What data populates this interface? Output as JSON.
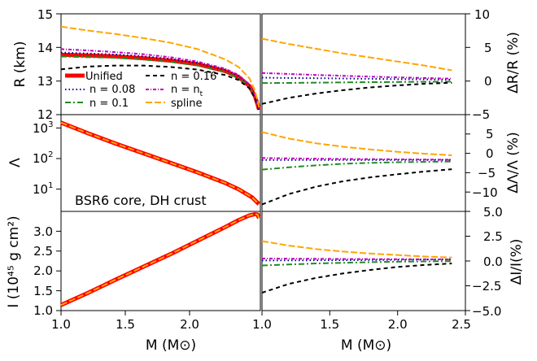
{
  "colors": {
    "unified": "#ff0000",
    "n008": "#00008b",
    "n01": "#228b22",
    "n016": "#000000",
    "nt": "#c000c0",
    "spline": "#ffa500"
  },
  "chart_data": [
    {
      "id": "radius",
      "type": "line",
      "ylabel": "R (km)",
      "ylim": [
        12,
        15
      ],
      "xlim": [
        1.0,
        2.5
      ],
      "yticks": [
        "12",
        "13",
        "14",
        "15"
      ],
      "legend": {
        "placement": "bottom-left",
        "entries": [
          "Unified",
          "n = 0.08",
          "n = 0.1",
          "n = 0.16",
          "n = n_t",
          "spline"
        ],
        "labels": {
          "unified": "Unified",
          "n008": "n = 0.08",
          "n01": "n = 0.1",
          "n016": "n = 0.16",
          "nt": "n = n",
          "nt_sub": "t",
          "spline": "spline"
        }
      },
      "series": [
        {
          "name": "Unified",
          "style": "solid-thick",
          "x": [
            1.0,
            1.2,
            1.4,
            1.6,
            1.8,
            2.0,
            2.2,
            2.3,
            2.38,
            2.42,
            2.44,
            2.45
          ],
          "y": [
            13.78,
            13.76,
            13.73,
            13.68,
            13.61,
            13.5,
            13.3,
            13.12,
            12.85,
            12.55,
            12.3,
            12.15
          ]
        },
        {
          "name": "n = 0.08",
          "style": "dotted",
          "x": [
            1.0,
            1.2,
            1.4,
            1.6,
            1.8,
            2.0,
            2.2,
            2.3,
            2.38,
            2.42,
            2.44,
            2.45
          ],
          "y": [
            13.85,
            13.82,
            13.79,
            13.74,
            13.66,
            13.54,
            13.34,
            13.16,
            12.88,
            12.57,
            12.32,
            12.17
          ]
        },
        {
          "name": "n = 0.1",
          "style": "dash-dot",
          "x": [
            1.0,
            1.2,
            1.4,
            1.6,
            1.8,
            2.0,
            2.2,
            2.3,
            2.38,
            2.42,
            2.44,
            2.45
          ],
          "y": [
            13.73,
            13.71,
            13.69,
            13.64,
            13.57,
            13.46,
            13.27,
            13.09,
            12.83,
            12.53,
            12.28,
            12.13
          ]
        },
        {
          "name": "n = 0.16",
          "style": "dashed",
          "x": [
            1.0,
            1.2,
            1.4,
            1.6,
            1.8,
            2.0,
            2.2,
            2.3,
            2.38,
            2.42,
            2.44,
            2.45
          ],
          "y": [
            13.35,
            13.43,
            13.46,
            13.46,
            13.42,
            13.34,
            13.18,
            13.03,
            12.78,
            12.5,
            12.27,
            12.12
          ]
        },
        {
          "name": "n = n_t",
          "style": "dashdot-dense",
          "x": [
            1.0,
            1.2,
            1.4,
            1.6,
            1.8,
            2.0,
            2.2,
            2.3,
            2.38,
            2.42,
            2.44,
            2.45
          ],
          "y": [
            13.95,
            13.91,
            13.86,
            13.8,
            13.71,
            13.58,
            13.37,
            13.18,
            12.9,
            12.58,
            12.33,
            12.18
          ]
        },
        {
          "name": "spline",
          "style": "long-dash",
          "x": [
            1.0,
            1.2,
            1.4,
            1.6,
            1.8,
            2.0,
            2.2,
            2.3,
            2.38,
            2.42,
            2.44,
            2.45
          ],
          "y": [
            14.62,
            14.5,
            14.4,
            14.28,
            14.14,
            13.95,
            13.65,
            13.42,
            13.08,
            12.72,
            12.42,
            12.22
          ]
        }
      ]
    },
    {
      "id": "dR",
      "type": "line",
      "ylabel": "ΔR/R (%)",
      "ylim": [
        -5,
        10
      ],
      "xlim": [
        1.0,
        2.5
      ],
      "yticks": [
        "−5",
        "0",
        "5",
        "10"
      ],
      "series": [
        {
          "name": "n = 0.08",
          "style": "dotted",
          "x": [
            1.0,
            1.2,
            1.4,
            1.6,
            1.8,
            2.0,
            2.2,
            2.4
          ],
          "y": [
            0.5,
            0.45,
            0.42,
            0.38,
            0.33,
            0.28,
            0.25,
            0.2
          ]
        },
        {
          "name": "n = 0.1",
          "style": "dash-dot",
          "x": [
            1.0,
            1.2,
            1.4,
            1.6,
            1.8,
            2.0,
            2.2,
            2.4
          ],
          "y": [
            -0.3,
            -0.28,
            -0.24,
            -0.2,
            -0.17,
            -0.14,
            -0.11,
            -0.08
          ]
        },
        {
          "name": "n = 0.16",
          "style": "dashed",
          "x": [
            1.0,
            1.2,
            1.4,
            1.6,
            1.8,
            2.0,
            2.2,
            2.4
          ],
          "y": [
            -3.4,
            -2.5,
            -1.85,
            -1.35,
            -0.95,
            -0.65,
            -0.4,
            -0.25
          ]
        },
        {
          "name": "n = n_t",
          "style": "dashdot-dense",
          "x": [
            1.0,
            1.2,
            1.4,
            1.6,
            1.8,
            2.0,
            2.2,
            2.4
          ],
          "y": [
            1.2,
            1.05,
            0.9,
            0.78,
            0.65,
            0.55,
            0.45,
            0.35
          ]
        },
        {
          "name": "spline",
          "style": "long-dash",
          "x": [
            1.0,
            1.2,
            1.4,
            1.6,
            1.8,
            2.0,
            2.2,
            2.4
          ],
          "y": [
            6.3,
            5.5,
            4.8,
            4.1,
            3.5,
            2.9,
            2.3,
            1.6
          ]
        }
      ]
    },
    {
      "id": "lambda",
      "type": "line",
      "ylabel": "Λ",
      "yscale": "log",
      "ylim": [
        3.5,
        7000
      ],
      "xlim": [
        1.0,
        2.5
      ],
      "yticks": [
        {
          "base": "10",
          "exp": "1",
          "value": 10
        },
        {
          "base": "10",
          "exp": "2",
          "value": 100
        },
        {
          "base": "10",
          "exp": "3",
          "value": 1000
        }
      ],
      "annotation": "BSR6 core, DH crust",
      "series": [
        {
          "name": "Unified",
          "style": "solid-thick",
          "x": [
            1.0,
            1.2,
            1.4,
            1.6,
            1.8,
            2.0,
            2.2,
            2.3,
            2.4,
            2.45
          ],
          "y": [
            3750,
            1600,
            720,
            340,
            160,
            75,
            33,
            20,
            10.5,
            6.2
          ]
        },
        {
          "name": "spline",
          "style": "long-dash",
          "x": [
            1.0,
            1.2,
            1.4,
            1.6,
            1.8,
            2.0,
            2.2,
            2.3,
            2.4,
            2.45
          ],
          "y": [
            3750,
            1600,
            720,
            340,
            160,
            75,
            33,
            20,
            10.5,
            6.2
          ]
        }
      ]
    },
    {
      "id": "dLambda",
      "type": "line",
      "ylabel": "ΔΛ/Λ (%)",
      "ylim": [
        -13,
        12
      ],
      "xlim": [
        1.0,
        2.5
      ],
      "yticks": [
        "−10",
        "−5",
        "0",
        "5",
        "10"
      ],
      "series": [
        {
          "name": "n = 0.08",
          "style": "dotted",
          "x": [
            1.0,
            1.2,
            1.4,
            1.6,
            1.8,
            2.0,
            2.2,
            2.4
          ],
          "y": [
            0.3,
            0.3,
            0.3,
            0.3,
            0.3,
            0.3,
            0.3,
            0.3
          ]
        },
        {
          "name": "n = 0.1",
          "style": "dash-dot",
          "x": [
            1.0,
            1.2,
            1.4,
            1.6,
            1.8,
            2.0,
            2.2,
            2.4
          ],
          "y": [
            -2.2,
            -1.6,
            -1.1,
            -0.7,
            -0.45,
            -0.3,
            -0.2,
            -0.1
          ]
        },
        {
          "name": "n = 0.16",
          "style": "dashed",
          "x": [
            1.0,
            1.2,
            1.4,
            1.6,
            1.8,
            2.0,
            2.2,
            2.4
          ],
          "y": [
            -11.2,
            -8.5,
            -6.6,
            -5.2,
            -4.2,
            -3.4,
            -2.7,
            -2.1
          ]
        },
        {
          "name": "n = n_t",
          "style": "dashdot-dense",
          "x": [
            1.0,
            1.2,
            1.4,
            1.6,
            1.8,
            2.0,
            2.2,
            2.4
          ],
          "y": [
            0.8,
            0.7,
            0.62,
            0.55,
            0.5,
            0.45,
            0.4,
            0.35
          ]
        },
        {
          "name": "spline",
          "style": "long-dash",
          "x": [
            1.0,
            1.2,
            1.4,
            1.6,
            1.8,
            2.0,
            2.2,
            2.4
          ],
          "y": [
            7.5,
            5.8,
            4.6,
            3.7,
            3.0,
            2.4,
            1.9,
            1.5
          ]
        }
      ]
    },
    {
      "id": "inertia",
      "type": "line",
      "ylabel": "I (10⁴⁵ g cm²)",
      "ylim": [
        1.0,
        3.5
      ],
      "xlim": [
        1.0,
        2.5
      ],
      "yticks": [
        "1.0",
        "1.5",
        "2.0",
        "2.5",
        "3.0"
      ],
      "xlabel": "M (M⊙)",
      "xticks": [
        "1.0",
        "1.5",
        "2.0"
      ],
      "series": [
        {
          "name": "Unified",
          "style": "solid-thick",
          "x": [
            1.0,
            1.2,
            1.4,
            1.6,
            1.8,
            2.0,
            2.2,
            2.3,
            2.38,
            2.42,
            2.44,
            2.45
          ],
          "y": [
            1.14,
            1.45,
            1.78,
            2.1,
            2.42,
            2.76,
            3.1,
            3.28,
            3.4,
            3.43,
            3.42,
            3.33
          ]
        },
        {
          "name": "spline",
          "style": "long-dash",
          "x": [
            1.0,
            1.2,
            1.4,
            1.6,
            1.8,
            2.0,
            2.2,
            2.3,
            2.38,
            2.42,
            2.44,
            2.45
          ],
          "y": [
            1.14,
            1.45,
            1.78,
            2.1,
            2.42,
            2.76,
            3.1,
            3.28,
            3.4,
            3.43,
            3.42,
            3.33
          ]
        }
      ]
    },
    {
      "id": "dI",
      "type": "line",
      "ylabel": "ΔI/I(%)",
      "ylim": [
        -5,
        5
      ],
      "xlim": [
        1.0,
        2.5
      ],
      "yticks": [
        "−5.0",
        "−2.5",
        "0.0",
        "2.5",
        "5.0"
      ],
      "xlabel": "M (M⊙)",
      "xticks": [
        "1.0",
        "1.5",
        "2.0",
        "2.5"
      ],
      "series": [
        {
          "name": "n = 0.08",
          "style": "dotted",
          "x": [
            1.0,
            1.2,
            1.4,
            1.6,
            1.8,
            2.0,
            2.2,
            2.4
          ],
          "y": [
            0.05,
            0.06,
            0.07,
            0.08,
            0.1,
            0.12,
            0.14,
            0.15
          ]
        },
        {
          "name": "n = 0.1",
          "style": "dash-dot",
          "x": [
            1.0,
            1.2,
            1.4,
            1.6,
            1.8,
            2.0,
            2.2,
            2.4
          ],
          "y": [
            -0.45,
            -0.35,
            -0.25,
            -0.18,
            -0.12,
            -0.07,
            -0.04,
            -0.02
          ]
        },
        {
          "name": "n = 0.16",
          "style": "dashed",
          "x": [
            1.0,
            1.2,
            1.4,
            1.6,
            1.8,
            2.0,
            2.2,
            2.4
          ],
          "y": [
            -3.2,
            -2.3,
            -1.7,
            -1.25,
            -0.9,
            -0.6,
            -0.4,
            -0.25
          ]
        },
        {
          "name": "n = n_t",
          "style": "dashdot-dense",
          "x": [
            1.0,
            1.2,
            1.4,
            1.6,
            1.8,
            2.0,
            2.2,
            2.4
          ],
          "y": [
            0.25,
            0.23,
            0.22,
            0.2,
            0.19,
            0.18,
            0.17,
            0.16
          ]
        },
        {
          "name": "spline",
          "style": "long-dash",
          "x": [
            1.0,
            1.2,
            1.4,
            1.6,
            1.8,
            2.0,
            2.2,
            2.4
          ],
          "y": [
            2.0,
            1.55,
            1.2,
            0.95,
            0.75,
            0.6,
            0.45,
            0.35
          ]
        }
      ]
    }
  ]
}
